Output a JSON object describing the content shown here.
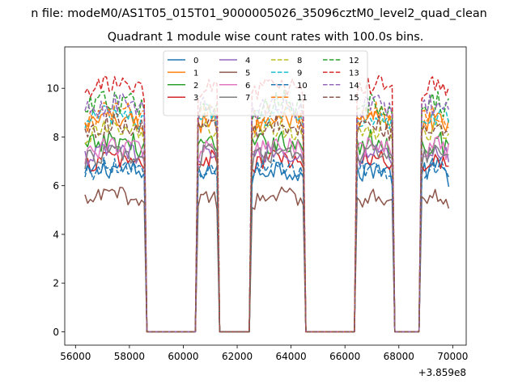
{
  "chart_data": {
    "type": "line",
    "suptitle": "n file: modeM0/AS1T05_015T01_9000005026_35096cztM0_level2_quad_clean",
    "title": "Quadrant 1 module wise count rates with 100.0s bins.",
    "xlabel": "",
    "ylabel": "",
    "x_offset_label": "+3.859e8",
    "xlim": [
      55600,
      70500
    ],
    "ylim": [
      -0.55,
      11.7
    ],
    "xticks": [
      56000,
      58000,
      60000,
      62000,
      64000,
      66000,
      68000,
      70000
    ],
    "xtick_labels": [
      "56000",
      "58000",
      "60000",
      "62000",
      "64000",
      "66000",
      "68000",
      "70000"
    ],
    "yticks": [
      0,
      2,
      4,
      6,
      8,
      10
    ],
    "ytick_labels": [
      "0",
      "2",
      "4",
      "6",
      "8",
      "10"
    ],
    "bin_seconds": 100,
    "active_segments": [
      [
        56350,
        58550
      ],
      [
        60550,
        61250
      ],
      [
        62550,
        64450
      ],
      [
        66450,
        67750
      ],
      [
        68850,
        69850
      ]
    ],
    "legend": {
      "location": "upper-center",
      "columns": 4
    },
    "series": [
      {
        "name": "0",
        "color": "#1f77b4",
        "dash": "solid",
        "level": 6.4,
        "amp": 0.45
      },
      {
        "name": "1",
        "color": "#ff7f0e",
        "dash": "solid",
        "level": 8.4,
        "amp": 0.45
      },
      {
        "name": "2",
        "color": "#2ca02c",
        "dash": "solid",
        "level": 7.5,
        "amp": 0.5
      },
      {
        "name": "3",
        "color": "#d62728",
        "dash": "solid",
        "level": 6.8,
        "amp": 0.4
      },
      {
        "name": "4",
        "color": "#9467bd",
        "dash": "solid",
        "level": 7.1,
        "amp": 0.4
      },
      {
        "name": "5",
        "color": "#8c564b",
        "dash": "solid",
        "level": 5.3,
        "amp": 0.35
      },
      {
        "name": "6",
        "color": "#e377c2",
        "dash": "solid",
        "level": 7.3,
        "amp": 0.45
      },
      {
        "name": "7",
        "color": "#7f7f7f",
        "dash": "solid",
        "level": 7.0,
        "amp": 0.4
      },
      {
        "name": "8",
        "color": "#bcbd22",
        "dash": "dashed",
        "level": 8.0,
        "amp": 0.45
      },
      {
        "name": "9",
        "color": "#17becf",
        "dash": "dashed",
        "level": 8.6,
        "amp": 0.45
      },
      {
        "name": "10",
        "color": "#1f77b4",
        "dash": "dashed",
        "level": 6.5,
        "amp": 0.4
      },
      {
        "name": "11",
        "color": "#ff7f0e",
        "dash": "dashed",
        "level": 8.7,
        "amp": 0.45
      },
      {
        "name": "12",
        "color": "#2ca02c",
        "dash": "dashed",
        "level": 9.1,
        "amp": 0.5
      },
      {
        "name": "13",
        "color": "#d62728",
        "dash": "dashed",
        "level": 9.8,
        "amp": 0.4
      },
      {
        "name": "14",
        "color": "#9467bd",
        "dash": "dashed",
        "level": 9.0,
        "amp": 0.45
      },
      {
        "name": "15",
        "color": "#8c564b",
        "dash": "dashed",
        "level": 8.2,
        "amp": 0.45
      }
    ]
  }
}
